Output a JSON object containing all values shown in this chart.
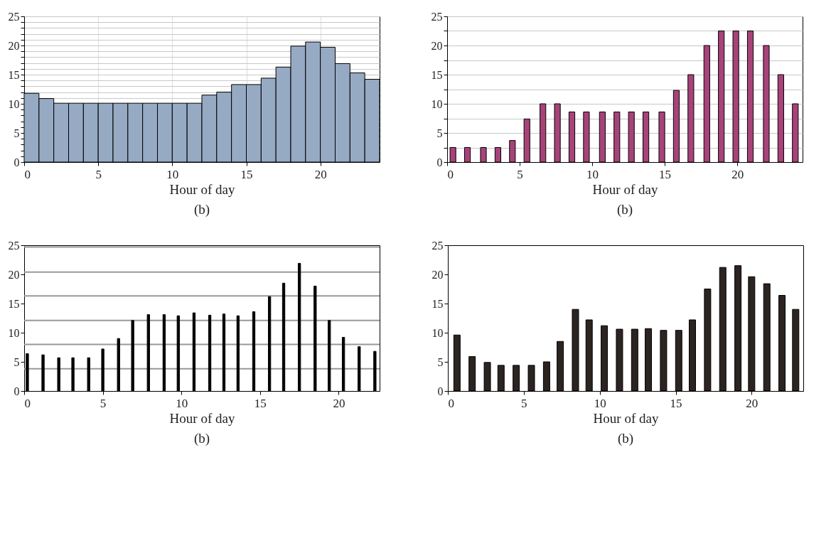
{
  "chart_data": [
    {
      "type": "histogram",
      "xlabel": "Hour of day",
      "annotations": [
        "(b)"
      ],
      "bins": [
        0,
        1,
        2,
        3,
        4,
        5,
        6,
        7,
        8,
        9,
        10,
        11,
        12,
        13,
        14,
        15,
        16,
        17,
        18,
        19,
        20,
        21,
        22,
        23,
        24
      ],
      "values": [
        11.8,
        10.9,
        10.1,
        10.1,
        10.1,
        10.1,
        10.1,
        10.1,
        10.1,
        10.1,
        10.1,
        10.1,
        11.5,
        12.0,
        13.3,
        13.3,
        14.4,
        16.3,
        19.9,
        20.6,
        19.7,
        16.9,
        15.3,
        14.2
      ],
      "color": "#97aac4",
      "xlim": [
        0,
        24
      ],
      "ylim": [
        0,
        25
      ],
      "xticks": [
        0,
        5,
        10,
        15,
        20
      ],
      "yticks": [
        0,
        {
          "value": 1,
          "label": null
        },
        {
          "value": 2,
          "label": null
        },
        {
          "value": 3,
          "label": null
        },
        {
          "value": 4,
          "label": null
        },
        5,
        {
          "value": 6,
          "label": null
        },
        {
          "value": 7,
          "label": null
        },
        {
          "value": 8,
          "label": null
        },
        {
          "value": 9,
          "label": null
        },
        10,
        {
          "value": 11,
          "label": null
        },
        {
          "value": 12,
          "label": null
        },
        {
          "value": 13,
          "label": null
        },
        {
          "value": 14,
          "label": null
        },
        15,
        {
          "value": 16,
          "label": null
        },
        {
          "value": 17,
          "label": null
        },
        {
          "value": 18,
          "label": null
        },
        {
          "value": 19,
          "label": null
        },
        20,
        {
          "value": 21,
          "label": null
        },
        {
          "value": 22,
          "label": null
        },
        {
          "value": 23,
          "label": null
        },
        {
          "value": 24,
          "label": null
        },
        25
      ],
      "grid": true
    },
    {
      "type": "bar",
      "xlabel": "Hour of day",
      "annotations": [
        "(b)"
      ],
      "x": [
        0.4,
        1.4,
        2.5,
        3.5,
        4.5,
        5.5,
        6.6,
        7.6,
        8.6,
        9.6,
        10.7,
        11.7,
        12.7,
        13.7,
        14.8,
        15.8,
        16.8,
        17.9,
        18.9,
        19.9,
        20.9,
        22.0,
        23.0,
        24.0
      ],
      "values": [
        2.5,
        2.5,
        2.5,
        2.5,
        3.7,
        7.4,
        10,
        10,
        8.6,
        8.6,
        8.6,
        8.6,
        8.6,
        8.6,
        8.6,
        12.3,
        15,
        20,
        22.5,
        22.5,
        22.5,
        20,
        15,
        10
      ],
      "color": "#a8437a",
      "xlim": [
        0,
        24.5
      ],
      "ylim": [
        0,
        25
      ],
      "xticks": [
        0,
        5,
        10,
        15,
        20
      ],
      "yticks": [
        0,
        {
          "value": 2.5,
          "label": null
        },
        5,
        {
          "value": 7.5,
          "label": null
        },
        10,
        {
          "value": 12.5,
          "label": null
        },
        15,
        {
          "value": 17.5,
          "label": null
        },
        20,
        {
          "value": 22.5,
          "label": null
        },
        25
      ],
      "grid": "y"
    },
    {
      "type": "bar",
      "xlabel": "Hour of day",
      "annotations": [
        "(b)"
      ],
      "x": [
        0.2,
        1.2,
        2.2,
        3.1,
        4.1,
        5.0,
        6.0,
        6.9,
        7.9,
        8.9,
        9.8,
        10.8,
        11.8,
        12.7,
        13.6,
        14.6,
        15.6,
        16.5,
        17.5,
        18.5,
        19.4,
        20.3,
        21.3,
        22.3
      ],
      "values": [
        6.4,
        6.2,
        5.7,
        5.7,
        5.7,
        7.2,
        9.0,
        12.1,
        13.1,
        13.1,
        12.9,
        13.4,
        13.0,
        13.2,
        12.9,
        13.6,
        16.2,
        18.5,
        21.9,
        18.0,
        12.1,
        9.2,
        7.6,
        6.8
      ],
      "color": "#000000",
      "xlim": [
        0,
        22.6
      ],
      "ylim": [
        0,
        25
      ],
      "xticks": [
        0,
        5,
        10,
        15,
        20
      ],
      "yticks": [
        0,
        5,
        10,
        15,
        20,
        25
      ],
      "ref_lines": [
        {
          "axis": "y",
          "value": 3.8
        },
        {
          "axis": "y",
          "value": 8.0
        },
        {
          "axis": "y",
          "value": 12.1
        },
        {
          "axis": "y",
          "value": 16.3
        },
        {
          "axis": "y",
          "value": 20.4
        },
        {
          "axis": "y",
          "value": 24.7
        }
      ]
    },
    {
      "type": "bar",
      "xlabel": "Hour of day",
      "annotations": [
        "(b)"
      ],
      "x": [
        0.6,
        1.6,
        2.6,
        3.5,
        4.5,
        5.5,
        6.5,
        7.4,
        8.4,
        9.3,
        10.3,
        11.3,
        12.3,
        13.2,
        14.2,
        15.2,
        16.1,
        17.1,
        18.1,
        19.1,
        20.0,
        21.0,
        22.0,
        22.9
      ],
      "values": [
        9.6,
        5.9,
        4.9,
        4.4,
        4.4,
        4.4,
        5.0,
        8.5,
        14.0,
        12.2,
        11.2,
        10.6,
        10.6,
        10.7,
        10.4,
        10.4,
        12.2,
        17.5,
        21.2,
        21.5,
        19.6,
        18.4,
        16.4,
        14.0
      ],
      "color": "#2b2420",
      "xlim": [
        0,
        23.4
      ],
      "ylim": [
        0,
        25
      ],
      "xticks": [
        0,
        5,
        10,
        15,
        20
      ],
      "yticks": [
        0,
        5,
        10,
        15,
        20,
        25
      ]
    }
  ]
}
